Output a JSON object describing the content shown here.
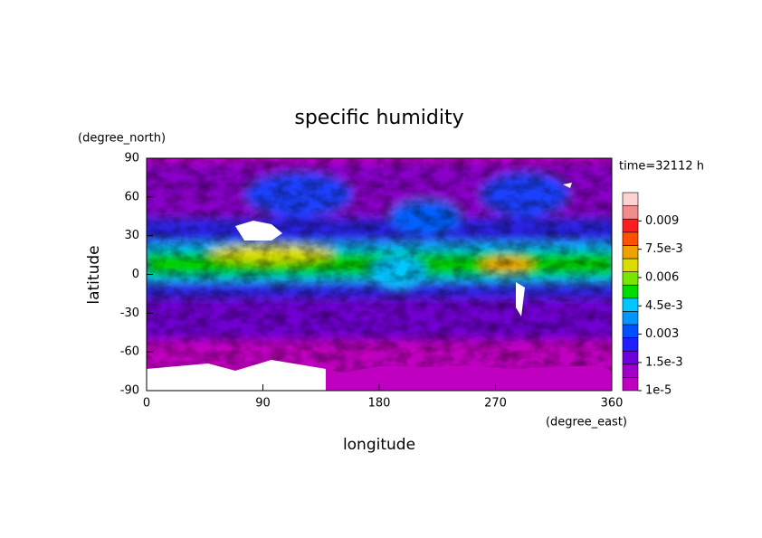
{
  "chart_data": {
    "type": "map",
    "title": "specific humidity",
    "xlabel": "longitude",
    "ylabel": "latitude",
    "xunit": "(degree_east)",
    "yunit": "(degree_north)",
    "annotation": "time=32112 h",
    "xlim": [
      0,
      360
    ],
    "xticks": [
      0,
      90,
      180,
      270,
      360
    ],
    "ylim": [
      -90,
      90
    ],
    "yticks": [
      -90,
      -60,
      -30,
      0,
      30,
      60,
      90
    ],
    "colorbar": {
      "clim": [
        1e-05,
        0.0105
      ],
      "colors": [
        "#c000c0",
        "#a000c8",
        "#6e00dc",
        "#1e1eff",
        "#0050ff",
        "#0096ff",
        "#00c8ff",
        "#00dc00",
        "#78e600",
        "#dcdc00",
        "#f0a000",
        "#ff5000",
        "#ff1e1e",
        "#f08c8c",
        "#ffd2d2"
      ],
      "ticks": [
        {
          "value": 1e-05,
          "label": "1e-5"
        },
        {
          "value": 0.0015,
          "label": "1.5e-3"
        },
        0.003,
        {
          "value": 0.0045,
          "label": "4.5e-3"
        },
        0.006,
        {
          "value": 0.0075,
          "label": "7.5e-3"
        },
        0.009
      ]
    }
  }
}
